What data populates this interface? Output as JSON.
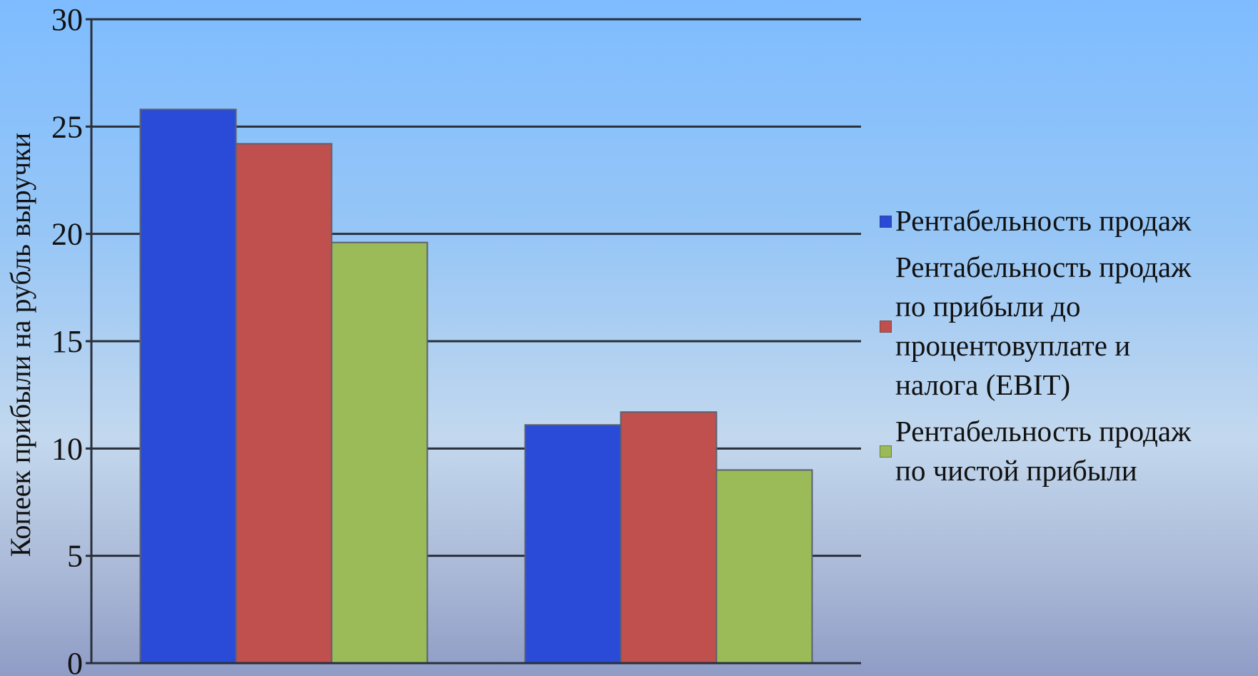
{
  "chart_data": {
    "type": "bar",
    "title": "",
    "xlabel": "",
    "ylabel": "Копеек прибыли на рубль выручки",
    "categories": [
      "",
      ""
    ],
    "ylim": [
      0,
      30
    ],
    "yticks": [
      0,
      5,
      10,
      15,
      20,
      25,
      30
    ],
    "grid": true,
    "legend_position": "right",
    "series": [
      {
        "name": "Рентабельность продаж",
        "color": "#2a4bd7",
        "values": [
          25.8,
          11.1
        ]
      },
      {
        "name": "Рентабельность продаж по прибыли до процентовуплате и налога (EBIT)",
        "color": "#c0504d",
        "values": [
          24.2,
          11.7
        ]
      },
      {
        "name": "Рентабельность продаж по чистой прибыли",
        "color": "#9bbb59",
        "values": [
          19.6,
          9.0
        ]
      }
    ]
  },
  "legend": {
    "items": [
      {
        "lines": [
          "Рентабельность продаж"
        ]
      },
      {
        "lines": [
          "Рентабельность продаж",
          "по прибыли до",
          "процентовуплате и",
          "налога (EBIT)"
        ]
      },
      {
        "lines": [
          "Рентабельность продаж",
          "по чистой прибыли"
        ]
      }
    ]
  }
}
